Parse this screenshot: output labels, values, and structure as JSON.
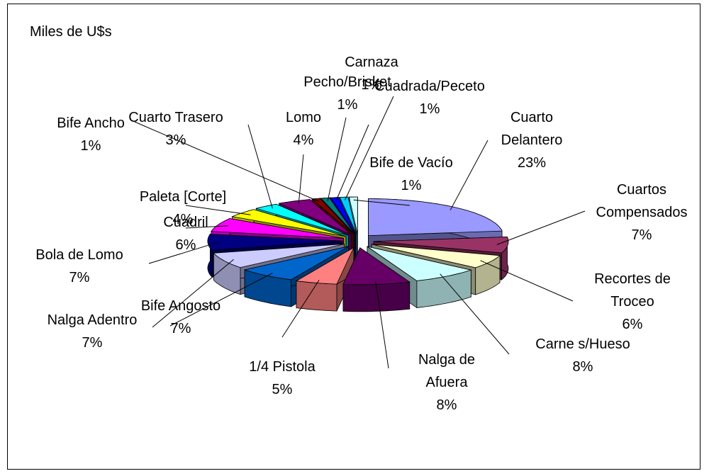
{
  "chart_data": {
    "type": "pie3d",
    "title": "Miles de U$s",
    "categories": [
      "Cuarto Delantero",
      "Cuartos Compensados",
      "Recortes de Troceo",
      "Carne s/Hueso",
      "Nalga de Afuera",
      "1/4 Pistola",
      "Bife Angosto",
      "Nalga Adentro",
      "Bola de Lomo",
      "Cuadril",
      "Paleta [Corte]",
      "Cuarto Trasero",
      "Lomo",
      "Bife Ancho",
      "Pecho/Brisket",
      "Carnaza",
      "Cuadrada/Peceto",
      "Bife de Vacío"
    ],
    "values": [
      23,
      7,
      6,
      8,
      8,
      5,
      7,
      7,
      7,
      6,
      4,
      3,
      4,
      1,
      1,
      1,
      1,
      1
    ],
    "value_labels": [
      "23%",
      "7%",
      "6%",
      "8%",
      "8%",
      "5%",
      "7%",
      "7%",
      "7%",
      "6%",
      "4%",
      "3%",
      "4%",
      "1%",
      "1%",
      "1%",
      "1%",
      "1%"
    ],
    "colors": [
      "#9999FF",
      "#993366",
      "#FFFFCC",
      "#CCFFFF",
      "#660066",
      "#FF8080",
      "#0066CC",
      "#CCCCFF",
      "#000080",
      "#FF00FF",
      "#FFFF00",
      "#00FFFF",
      "#800080",
      "#800000",
      "#008080",
      "#0000FF",
      "#00CCFF",
      "#CCFFFF"
    ]
  }
}
